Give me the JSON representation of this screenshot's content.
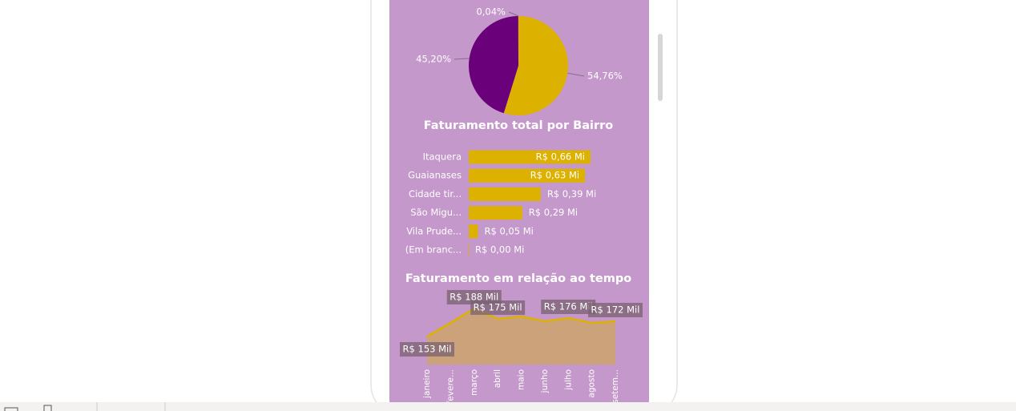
{
  "chart_data": [
    {
      "type": "pie",
      "values": [
        54.76,
        45.2,
        0.04
      ],
      "value_labels": [
        "54,76%",
        "45,20%",
        "0,04%"
      ],
      "colors": [
        "#DDB100",
        "#6B007B",
        "#E66C37"
      ]
    },
    {
      "type": "bar",
      "title": "Faturamento total por Bairro",
      "categories": [
        "Itaquera",
        "Guaianases",
        "Cidade tir...",
        "São Migu...",
        "Vila Prude...",
        "(Em branc..."
      ],
      "values": [
        0.66,
        0.63,
        0.39,
        0.29,
        0.05,
        0.0
      ],
      "value_labels": [
        "R$ 0,66 Mi",
        "R$ 0,63 Mi",
        "R$ 0,39 Mi",
        "R$ 0,29 Mi",
        "R$ 0,05 Mi",
        "R$ 0,00 Mi"
      ],
      "color": "#DDB100"
    },
    {
      "type": "area",
      "title": "Faturamento em relação ao tempo",
      "categories": [
        "janeiro",
        "fevere...",
        "março",
        "abril",
        "maio",
        "junho",
        "julho",
        "agosto",
        "setem..."
      ],
      "values": [
        153,
        170,
        188,
        175,
        178,
        172,
        176,
        170,
        172
      ],
      "value_labels": [
        "R$ 153 Mil",
        null,
        "R$ 188 Mil",
        "R$ 175 Mil",
        null,
        null,
        "R$ 176 Mil",
        null,
        "R$ 172 Mil"
      ],
      "color": "#DDB100",
      "fill": "#CCA27A"
    }
  ]
}
